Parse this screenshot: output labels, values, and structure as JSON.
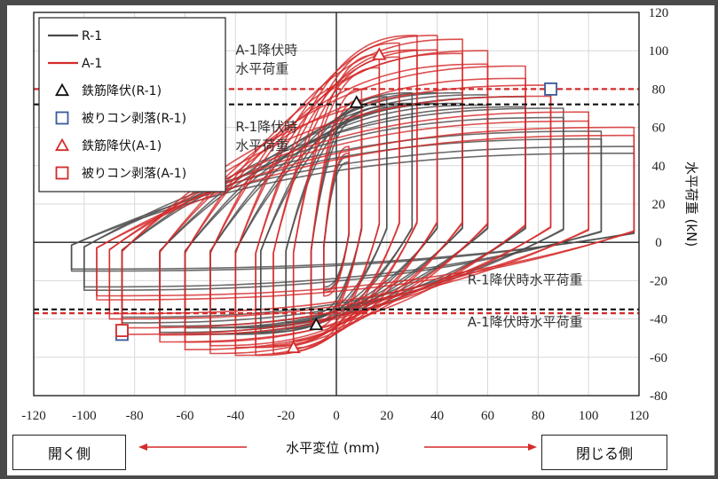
{
  "chart_data": {
    "type": "line",
    "xlabel": "水平変位 (mm)",
    "ylabel": "水平荷重 (kN)",
    "xlim": [
      -120,
      120
    ],
    "ylim": [
      -80,
      120
    ],
    "x_ticks": [
      -120,
      -100,
      -80,
      -60,
      -40,
      -20,
      0,
      20,
      40,
      60,
      80,
      100,
      120
    ],
    "y_ticks": [
      -80,
      -60,
      -40,
      -20,
      0,
      20,
      40,
      60,
      80,
      100,
      120
    ],
    "grid": true,
    "legend_position": "top-left",
    "legend": [
      {
        "label": "R-1",
        "kind": "line",
        "color": "#4a4a4a"
      },
      {
        "label": "A-1",
        "kind": "line",
        "color": "#d42a2a"
      },
      {
        "label": "鉄筋降伏(R-1)",
        "kind": "triangle",
        "color": "#111111"
      },
      {
        "label": "被りコン剥落(R-1)",
        "kind": "square",
        "color": "#3a5a9a"
      },
      {
        "label": "鉄筋降伏(A-1)",
        "kind": "triangle",
        "color": "#d42a2a"
      },
      {
        "label": "被りコン剥落(A-1)",
        "kind": "square",
        "color": "#d42a2a"
      }
    ],
    "series": [
      {
        "name": "R-1",
        "color": "#4a4a4a",
        "cycles": [
          {
            "dp": 5,
            "fp": 45,
            "dn": -5,
            "fn": -25
          },
          {
            "dp": 10,
            "fp": 70,
            "dn": -10,
            "fn": -40
          },
          {
            "dp": 20,
            "fp": 76,
            "dn": -20,
            "fn": -45
          },
          {
            "dp": 30,
            "fp": 78,
            "dn": -30,
            "fn": -47
          },
          {
            "dp": 40,
            "fp": 78,
            "dn": -40,
            "fn": -48
          },
          {
            "dp": 50,
            "fp": 78,
            "dn": -50,
            "fn": -48
          },
          {
            "dp": 60,
            "fp": 77,
            "dn": -60,
            "fn": -48
          },
          {
            "dp": 75,
            "fp": 76,
            "dn": -70,
            "fn": -47
          },
          {
            "dp": 90,
            "fp": 70,
            "dn": -85,
            "fn": -42
          },
          {
            "dp": 105,
            "fp": 58,
            "dn": -100,
            "fn": -25
          },
          {
            "dp": 118,
            "fp": 50,
            "dn": -105,
            "fn": -15
          }
        ]
      },
      {
        "name": "A-1",
        "color": "#d42a2a",
        "cycles": [
          {
            "dp": 5,
            "fp": 50,
            "dn": -5,
            "fn": -28
          },
          {
            "dp": 10,
            "fp": 80,
            "dn": -10,
            "fn": -45
          },
          {
            "dp": 17,
            "fp": 98,
            "dn": -17,
            "fn": -55
          },
          {
            "dp": 25,
            "fp": 104,
            "dn": -25,
            "fn": -58
          },
          {
            "dp": 32,
            "fp": 108,
            "dn": -32,
            "fn": -59
          },
          {
            "dp": 40,
            "fp": 108,
            "dn": -40,
            "fn": -59
          },
          {
            "dp": 50,
            "fp": 106,
            "dn": -50,
            "fn": -58
          },
          {
            "dp": 60,
            "fp": 100,
            "dn": -60,
            "fn": -56
          },
          {
            "dp": 75,
            "fp": 92,
            "dn": -70,
            "fn": -52
          },
          {
            "dp": 85,
            "fp": 82,
            "dn": -85,
            "fn": -48
          },
          {
            "dp": 100,
            "fp": 68,
            "dn": -90,
            "fn": -40
          },
          {
            "dp": 118,
            "fp": 60,
            "dn": -95,
            "fn": -30
          }
        ]
      }
    ],
    "markers": [
      {
        "series": "R-1",
        "event": "鉄筋降伏",
        "shape": "triangle",
        "color": "#111111",
        "x": 8,
        "y": 73
      },
      {
        "series": "R-1",
        "event": "鉄筋降伏",
        "shape": "triangle",
        "color": "#111111",
        "x": -8,
        "y": -43
      },
      {
        "series": "R-1",
        "event": "被りコン剥落",
        "shape": "square",
        "color": "#3a5a9a",
        "x": 85,
        "y": 80
      },
      {
        "series": "R-1",
        "event": "被りコン剥落",
        "shape": "square",
        "color": "#3a5a9a",
        "x": -85,
        "y": -48
      },
      {
        "series": "A-1",
        "event": "鉄筋降伏",
        "shape": "triangle",
        "color": "#d42a2a",
        "x": 17,
        "y": 98
      },
      {
        "series": "A-1",
        "event": "鉄筋降伏",
        "shape": "triangle",
        "color": "#d42a2a",
        "x": -17,
        "y": -55
      },
      {
        "series": "A-1",
        "event": "被りコン剥落",
        "shape": "square",
        "color": "#d42a2a",
        "x": -85,
        "y": -46
      }
    ],
    "ref_lines": [
      {
        "y": 80,
        "color": "#d42a2a"
      },
      {
        "y": 72,
        "color": "#111111"
      },
      {
        "y": -35,
        "color": "#111111"
      },
      {
        "y": -37,
        "color": "#d42a2a"
      }
    ],
    "annotations": [
      {
        "lines": [
          "A-1降伏時",
          "水平荷重"
        ],
        "x": -40,
        "y": 98
      },
      {
        "lines": [
          "R-1降伏時",
          "水平荷重"
        ],
        "x": -40,
        "y": 58
      },
      {
        "lines": [
          "R-1降伏時水平荷重"
        ],
        "x": 52,
        "y": -22
      },
      {
        "lines": [
          "A-1降伏時水平荷重"
        ],
        "x": 52,
        "y": -44
      }
    ]
  },
  "direction_labels": {
    "open": "開く側",
    "close": "閉じる側"
  }
}
